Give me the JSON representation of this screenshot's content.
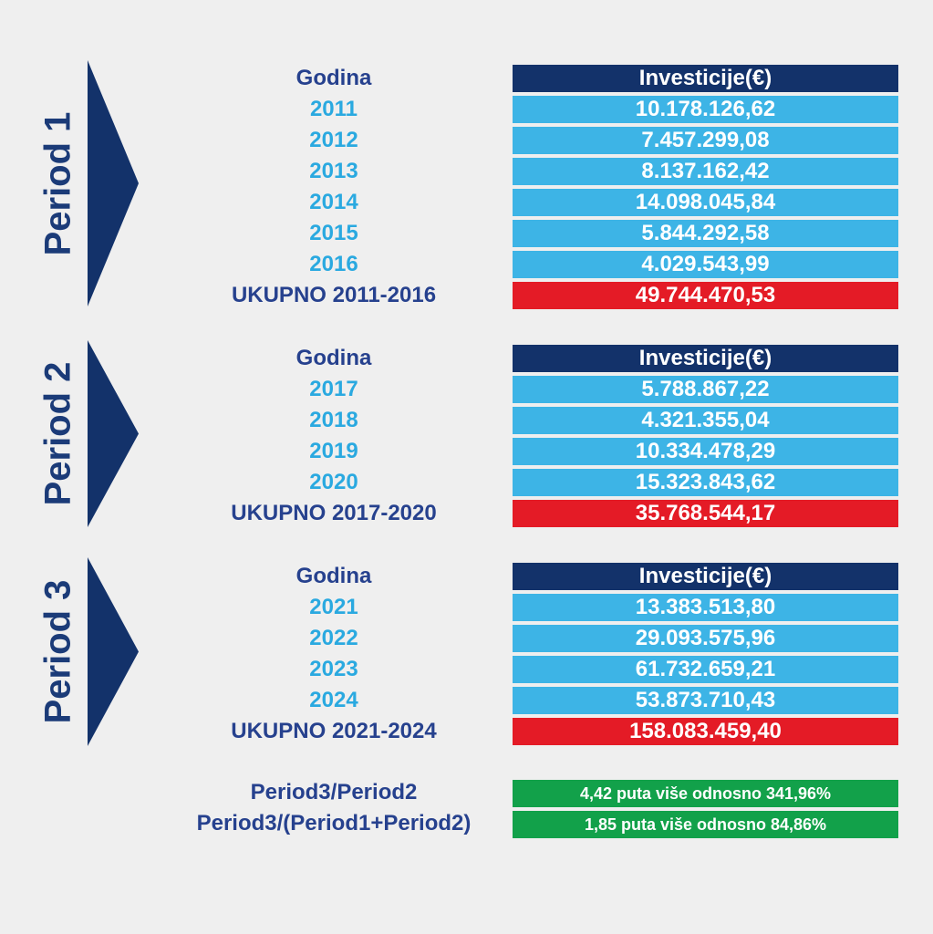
{
  "value_header": "Investicije(€)",
  "year_header": "Godina",
  "periods": [
    {
      "label": "Period 1",
      "rows": [
        {
          "year": "2011",
          "value": "10.178.126,62"
        },
        {
          "year": "2012",
          "value": "7.457.299,08"
        },
        {
          "year": "2013",
          "value": "8.137.162,42"
        },
        {
          "year": "2014",
          "value": "14.098.045,84"
        },
        {
          "year": "2015",
          "value": "5.844.292,58"
        },
        {
          "year": "2016",
          "value": "4.029.543,99"
        }
      ],
      "total_label": "UKUPNO 2011-2016",
      "total_value": "49.744.470,53"
    },
    {
      "label": "Period 2",
      "rows": [
        {
          "year": "2017",
          "value": "5.788.867,22"
        },
        {
          "year": "2018",
          "value": "4.321.355,04"
        },
        {
          "year": "2019",
          "value": "10.334.478,29"
        },
        {
          "year": "2020",
          "value": "15.323.843,62"
        }
      ],
      "total_label": "UKUPNO 2017-2020",
      "total_value": "35.768.544,17"
    },
    {
      "label": "Period 3",
      "rows": [
        {
          "year": "2021",
          "value": "13.383.513,80"
        },
        {
          "year": "2022",
          "value": "29.093.575,96"
        },
        {
          "year": "2023",
          "value": "61.732.659,21"
        },
        {
          "year": "2024",
          "value": "53.873.710,43"
        }
      ],
      "total_label": "UKUPNO 2021-2024",
      "total_value": "158.083.459,40"
    }
  ],
  "comparisons": [
    {
      "label": "Period3/Period2",
      "value": "4,42 puta više odnosno 341,96%"
    },
    {
      "label": "Period3/(Period1+Period2)",
      "value": "1,85 puta više odnosno 84,86%"
    }
  ],
  "colors": {
    "navy": "#13326a",
    "header_text": "#26418e",
    "year_text": "#2aa9e0",
    "year_cell": "#3db4e6",
    "total_cell": "#e41b26",
    "comparison_cell": "#12a14a",
    "background": "#efefef"
  },
  "chart_data": {
    "type": "table",
    "columns": [
      "Godina",
      "Investicije(€)"
    ],
    "periods": [
      {
        "name": "Period 1",
        "x": [
          2011,
          2012,
          2013,
          2014,
          2015,
          2016
        ],
        "values": [
          10178126.62,
          7457299.08,
          8137162.42,
          14098045.84,
          5844292.58,
          4029543.99
        ],
        "total": 49744470.53
      },
      {
        "name": "Period 2",
        "x": [
          2017,
          2018,
          2019,
          2020
        ],
        "values": [
          5788867.22,
          4321355.04,
          10334478.29,
          15323843.62
        ],
        "total": 35768544.17
      },
      {
        "name": "Period 3",
        "x": [
          2021,
          2022,
          2023,
          2024
        ],
        "values": [
          13383513.8,
          29093575.96,
          61732659.21,
          53873710.43
        ],
        "total": 158083459.4
      }
    ],
    "ratios": [
      {
        "label": "Period3/Period2",
        "times": 4.42,
        "percent": 341.96
      },
      {
        "label": "Period3/(Period1+Period2)",
        "times": 1.85,
        "percent": 84.86
      }
    ]
  }
}
